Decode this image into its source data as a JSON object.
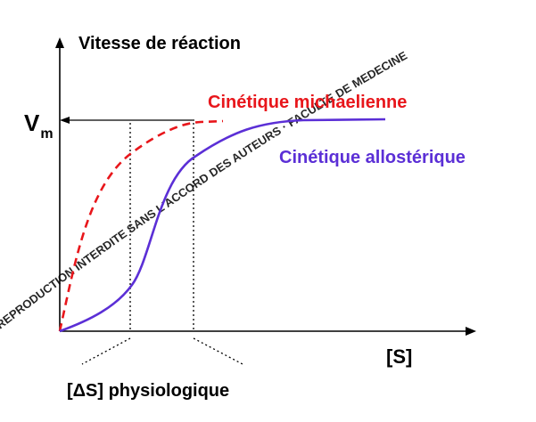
{
  "y_axis_label": "Vitesse de réaction",
  "vm_label": {
    "main": "V",
    "sub": "m"
  },
  "x_axis_label": "[S]",
  "delta_s_label": "[ΔS] physiologique",
  "watermark": "REPRODUCTION INTERDITE SANS L'ACCORD DES AUTEURS · FACULTE DE MEDECINE",
  "colors": {
    "michaelian": "#e8161b",
    "allosteric": "#5b2fd6",
    "axes": "#000000",
    "text": "#000000",
    "watermark": "#000000"
  },
  "series": [
    {
      "name": "Cinétique michaelienne",
      "color": "#e8161b",
      "line_style": "dashed",
      "shape": "hyperbolic"
    },
    {
      "name": "Cinétique allostérique",
      "color": "#5b2fd6",
      "line_style": "solid",
      "shape": "sigmoidal"
    }
  ]
}
